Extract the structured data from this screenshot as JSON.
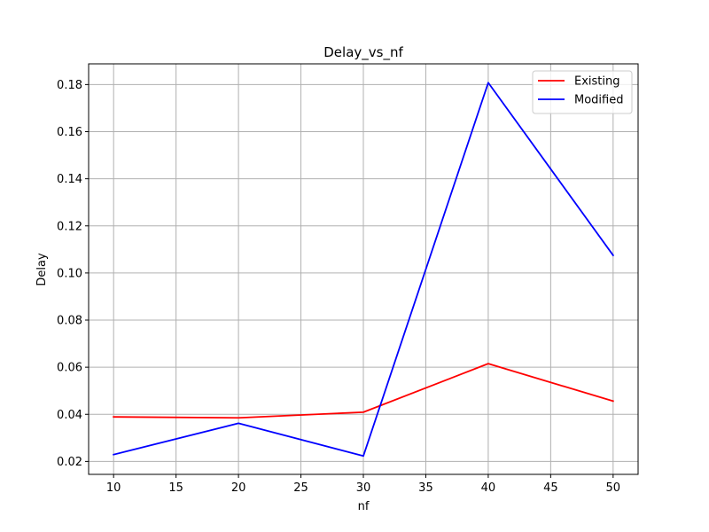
{
  "chart_data": {
    "type": "line",
    "title": "Delay_vs_nf",
    "xlabel": "nf",
    "ylabel": "Delay",
    "x": [
      10,
      20,
      30,
      40,
      50
    ],
    "xlim": [
      8,
      52
    ],
    "ylim": [
      0.0145,
      0.1888
    ],
    "xticks": [
      "10",
      "15",
      "20",
      "25",
      "30",
      "35",
      "40",
      "45",
      "50"
    ],
    "yticks": [
      "0.02",
      "0.04",
      "0.06",
      "0.08",
      "0.10",
      "0.12",
      "0.14",
      "0.16",
      "0.18"
    ],
    "grid": true,
    "legend_position": "top-right",
    "series": [
      {
        "name": "Existing",
        "color": "#ff0000",
        "values": [
          0.0389,
          0.0385,
          0.0409,
          0.0615,
          0.0456
        ]
      },
      {
        "name": "Modified",
        "color": "#0000ff",
        "values": [
          0.0229,
          0.0362,
          0.0223,
          0.1808,
          0.1075
        ]
      }
    ]
  }
}
